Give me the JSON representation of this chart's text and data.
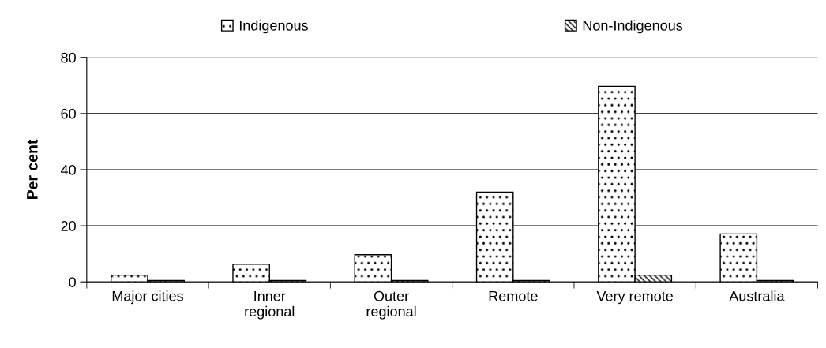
{
  "chart_data": {
    "type": "bar",
    "ylabel": "Per cent",
    "categories": [
      "Major cities",
      "Inner\nregional",
      "Outer\nregional",
      "Remote",
      "Very remote",
      "Australia"
    ],
    "series": [
      {
        "name": "Indigenous",
        "color": "#000000",
        "values": [
          2.4,
          6.3,
          9.7,
          32,
          69.7,
          17.1
        ]
      },
      {
        "name": "Non-Indigenous",
        "color": "#000000",
        "values": [
          0.5,
          0.5,
          0.5,
          0.5,
          2.4,
          0.5
        ]
      }
    ],
    "ylim": [
      0,
      80
    ],
    "yticks": [
      0,
      20,
      40,
      60,
      80
    ],
    "grid": "y",
    "legend": "top"
  }
}
